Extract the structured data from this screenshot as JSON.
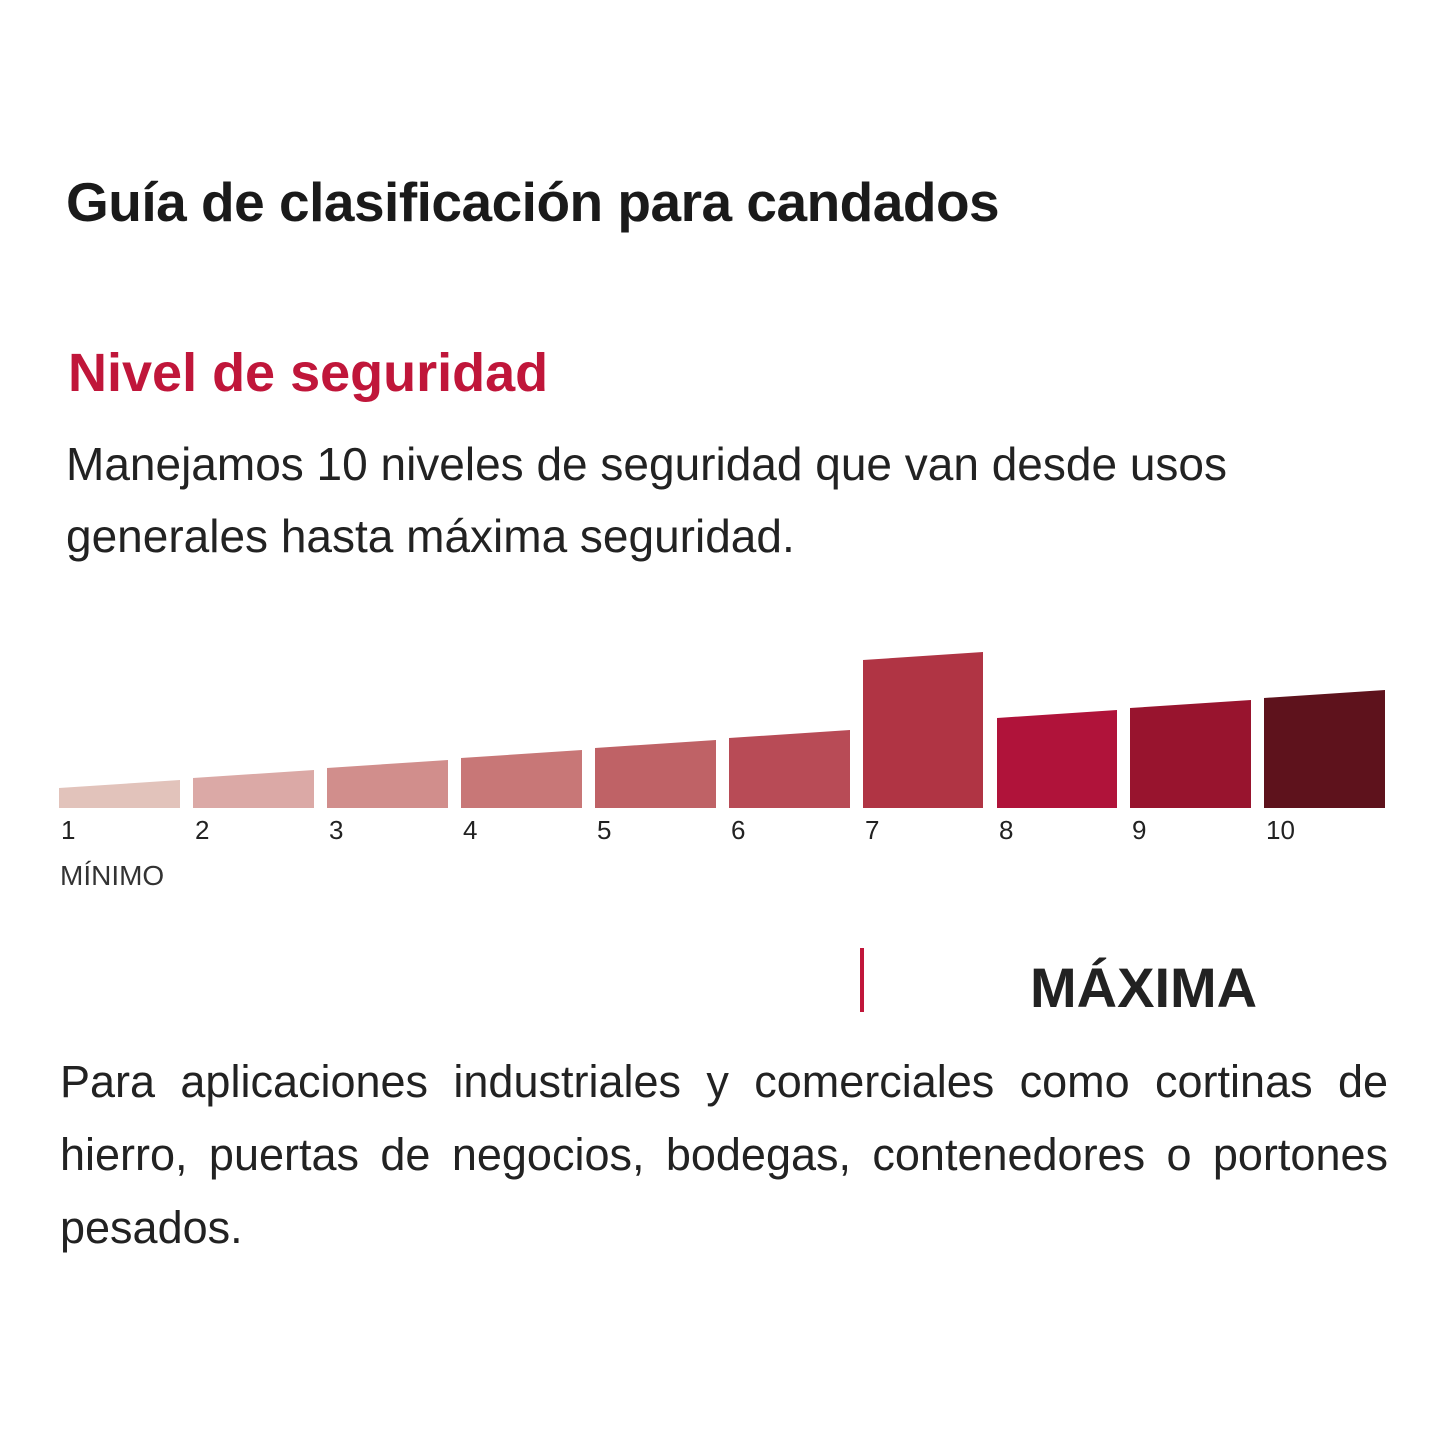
{
  "header": {
    "title": "Guía de clasificación para candados"
  },
  "section": {
    "heading": "Nivel de seguridad",
    "intro": "Manejamos 10 niveles de seguridad que van desde usos generales hasta máxima seguridad."
  },
  "scale": {
    "levels": [
      "1",
      "2",
      "3",
      "4",
      "5",
      "6",
      "7",
      "8",
      "9",
      "10"
    ],
    "min_label": "MÍNIMO"
  },
  "rating": {
    "label": "MÁXIMA",
    "description": "Para aplicaciones industriales y comerciales como cortinas de hierro, puertas de negocios, bodegas, contenedores o portones pesados."
  }
}
